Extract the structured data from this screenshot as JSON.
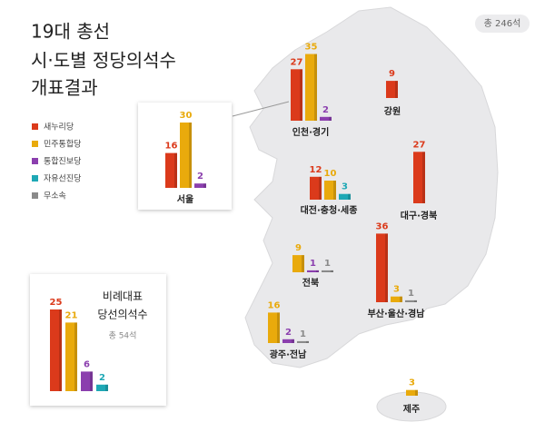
{
  "title": [
    "19대 총선",
    "시·도별 정당의석수",
    "개표결과"
  ],
  "total": "총 246석",
  "parties": [
    {
      "name": "새누리당",
      "color": "#db3a1b"
    },
    {
      "name": "민주통합당",
      "color": "#e9aa0c"
    },
    {
      "name": "통합진보당",
      "color": "#8b3fae"
    },
    {
      "name": "자유선진당",
      "color": "#1ea8b5"
    },
    {
      "name": "무소속",
      "color": "#8a8a8a"
    }
  ],
  "regions": [
    {
      "name": "서울",
      "values": [
        16,
        30,
        2,
        null,
        null
      ]
    },
    {
      "name": "인천·경기",
      "values": [
        27,
        35,
        2,
        null,
        null
      ]
    },
    {
      "name": "강원",
      "values": [
        9,
        null,
        null,
        null,
        null
      ]
    },
    {
      "name": "대전·충청·세종",
      "values": [
        12,
        10,
        null,
        3,
        null
      ]
    },
    {
      "name": "대구·경북",
      "values": [
        27,
        null,
        null,
        null,
        null
      ]
    },
    {
      "name": "전북",
      "values": [
        null,
        9,
        1,
        null,
        1
      ]
    },
    {
      "name": "부산·울산·경남",
      "values": [
        36,
        3,
        null,
        null,
        1
      ]
    },
    {
      "name": "광주·전남",
      "values": [
        null,
        16,
        2,
        null,
        1
      ]
    },
    {
      "name": "제주",
      "values": [
        null,
        3,
        null,
        null,
        null
      ]
    }
  ],
  "proportional": {
    "title": [
      "비례대표",
      "당선의석수"
    ],
    "total": "총 54석",
    "values": [
      25,
      21,
      6,
      2
    ]
  }
}
